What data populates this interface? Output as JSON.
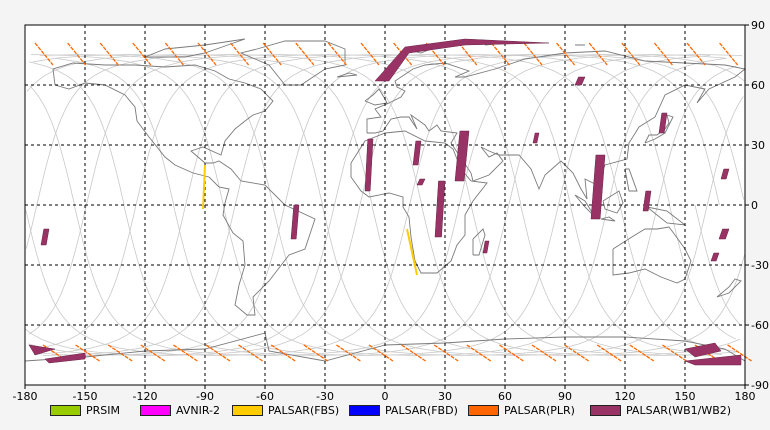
{
  "chart_data": {
    "type": "map",
    "x_ticks": [
      "-180",
      "-150",
      "-120",
      "-90",
      "-60",
      "-30",
      "0",
      "30",
      "60",
      "90",
      "120",
      "150",
      "180"
    ],
    "y_ticks": [
      "90",
      "60",
      "30",
      "0",
      "-30",
      "-60",
      "-90"
    ],
    "xlim": [
      -180,
      180
    ],
    "ylim": [
      -90,
      90
    ],
    "grid": true,
    "legend_position": "bottom",
    "legend": [
      {
        "label": "PRSIM",
        "color": "#99cc00"
      },
      {
        "label": "AVNIR-2",
        "color": "#ff00ff"
      },
      {
        "label": "PALSAR(FBS)",
        "color": "#ffcc00"
      },
      {
        "label": "PALSAR(FBD)",
        "color": "#0000ff"
      },
      {
        "label": "PALSAR(PLR)",
        "color": "#ff6600"
      },
      {
        "label": "PALSAR(WB1/WB2)",
        "color": "#993366"
      }
    ],
    "orbit_tracks_note_series": {
      "wb_swaths": [
        {
          "lon": [
            -10,
            -6
          ],
          "lat": [
            7,
            33
          ]
        },
        {
          "lon": [
            14,
            18
          ],
          "lat": [
            20,
            32
          ]
        },
        {
          "lon": [
            35,
            42
          ],
          "lat": [
            12,
            37
          ]
        },
        {
          "lon": [
            25,
            30
          ],
          "lat": [
            -16,
            12
          ]
        },
        {
          "lon": [
            -47,
            -43
          ],
          "lat": [
            -17,
            0
          ]
        },
        {
          "lon": [
            103,
            110
          ],
          "lat": [
            -7,
            25
          ]
        },
        {
          "lon": [
            129,
            133
          ],
          "lat": [
            -3,
            7
          ]
        },
        {
          "lon": [
            137,
            141
          ],
          "lat": [
            36,
            46
          ]
        },
        {
          "lon": [
            74,
            77
          ],
          "lat": [
            31,
            36
          ]
        },
        {
          "lon": [
            49,
            52
          ],
          "lat": [
            -24,
            -18
          ]
        },
        {
          "lon": [
            -172,
            -168
          ],
          "lat": [
            -20,
            -12
          ]
        },
        {
          "lon": [
            168,
            172
          ],
          "lat": [
            13,
            18
          ]
        },
        {
          "lon": [
            163,
            167
          ],
          "lat": [
            -28,
            -24
          ]
        },
        {
          "lon": [
            167,
            172
          ],
          "lat": [
            -17,
            -12
          ]
        },
        {
          "lon": [
            95,
            100
          ],
          "lat": [
            60,
            64
          ]
        },
        {
          "lon": [
            16,
            20
          ],
          "lat": [
            10,
            13
          ]
        }
      ],
      "fbs_tracks": [
        {
          "lon": [
            -90,
            -91
          ],
          "lat": [
            -2,
            20
          ]
        },
        {
          "lon": [
            11,
            16
          ],
          "lat": [
            -35,
            -12
          ]
        }
      ]
    }
  }
}
